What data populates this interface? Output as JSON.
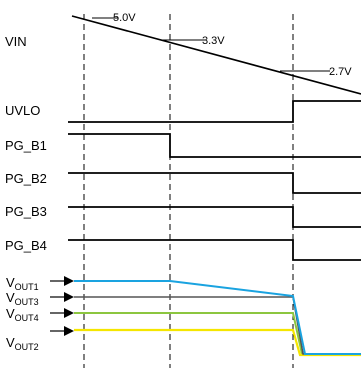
{
  "labels": {
    "vin": "VIN",
    "uvlo": "UVLO",
    "pg_b1": "PG_B1",
    "pg_b2": "PG_B2",
    "pg_b3": "PG_B3",
    "pg_b4": "PG_B4"
  },
  "vin_levels": {
    "v1": "5.0V",
    "v2": "3.3V",
    "v3": "2.7V"
  },
  "outputs": {
    "vout1": {
      "main": "V",
      "sub": "OUT1",
      "color": "#1aa3e0"
    },
    "vout3": {
      "main": "V",
      "sub": "OUT3",
      "color": "#555555"
    },
    "vout4": {
      "main": "V",
      "sub": "OUT4",
      "color": "#8cc63f"
    },
    "vout2": {
      "main": "V",
      "sub": "OUT2",
      "color": "#f5e600"
    }
  },
  "colors": {
    "signal": "#000000",
    "guide": "#000000"
  }
}
